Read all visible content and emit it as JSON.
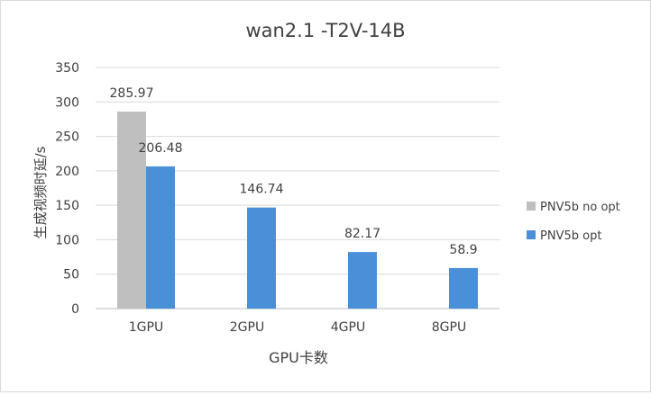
{
  "chart_data": {
    "type": "bar",
    "title": "wan2.1 -T2V-14B",
    "xlabel": "GPU卡数",
    "ylabel": "生成视频时延/s",
    "categories": [
      "1GPU",
      "2GPU",
      "4GPU",
      "8GPU"
    ],
    "ylim": [
      0,
      350
    ],
    "yticks": [
      0,
      50,
      100,
      150,
      200,
      250,
      300,
      350
    ],
    "grid": true,
    "legend_position": "right",
    "series": [
      {
        "name": "PNV5b no opt",
        "color": "#bfbfbf",
        "values": [
          285.97,
          null,
          null,
          null
        ],
        "labels": [
          "285.97",
          null,
          null,
          null
        ]
      },
      {
        "name": "PNV5b opt",
        "color": "#4a90d9",
        "values": [
          206.48,
          146.74,
          82.17,
          58.9
        ],
        "labels": [
          "206.48",
          "146.74",
          "82.17",
          "58.9"
        ]
      }
    ]
  }
}
